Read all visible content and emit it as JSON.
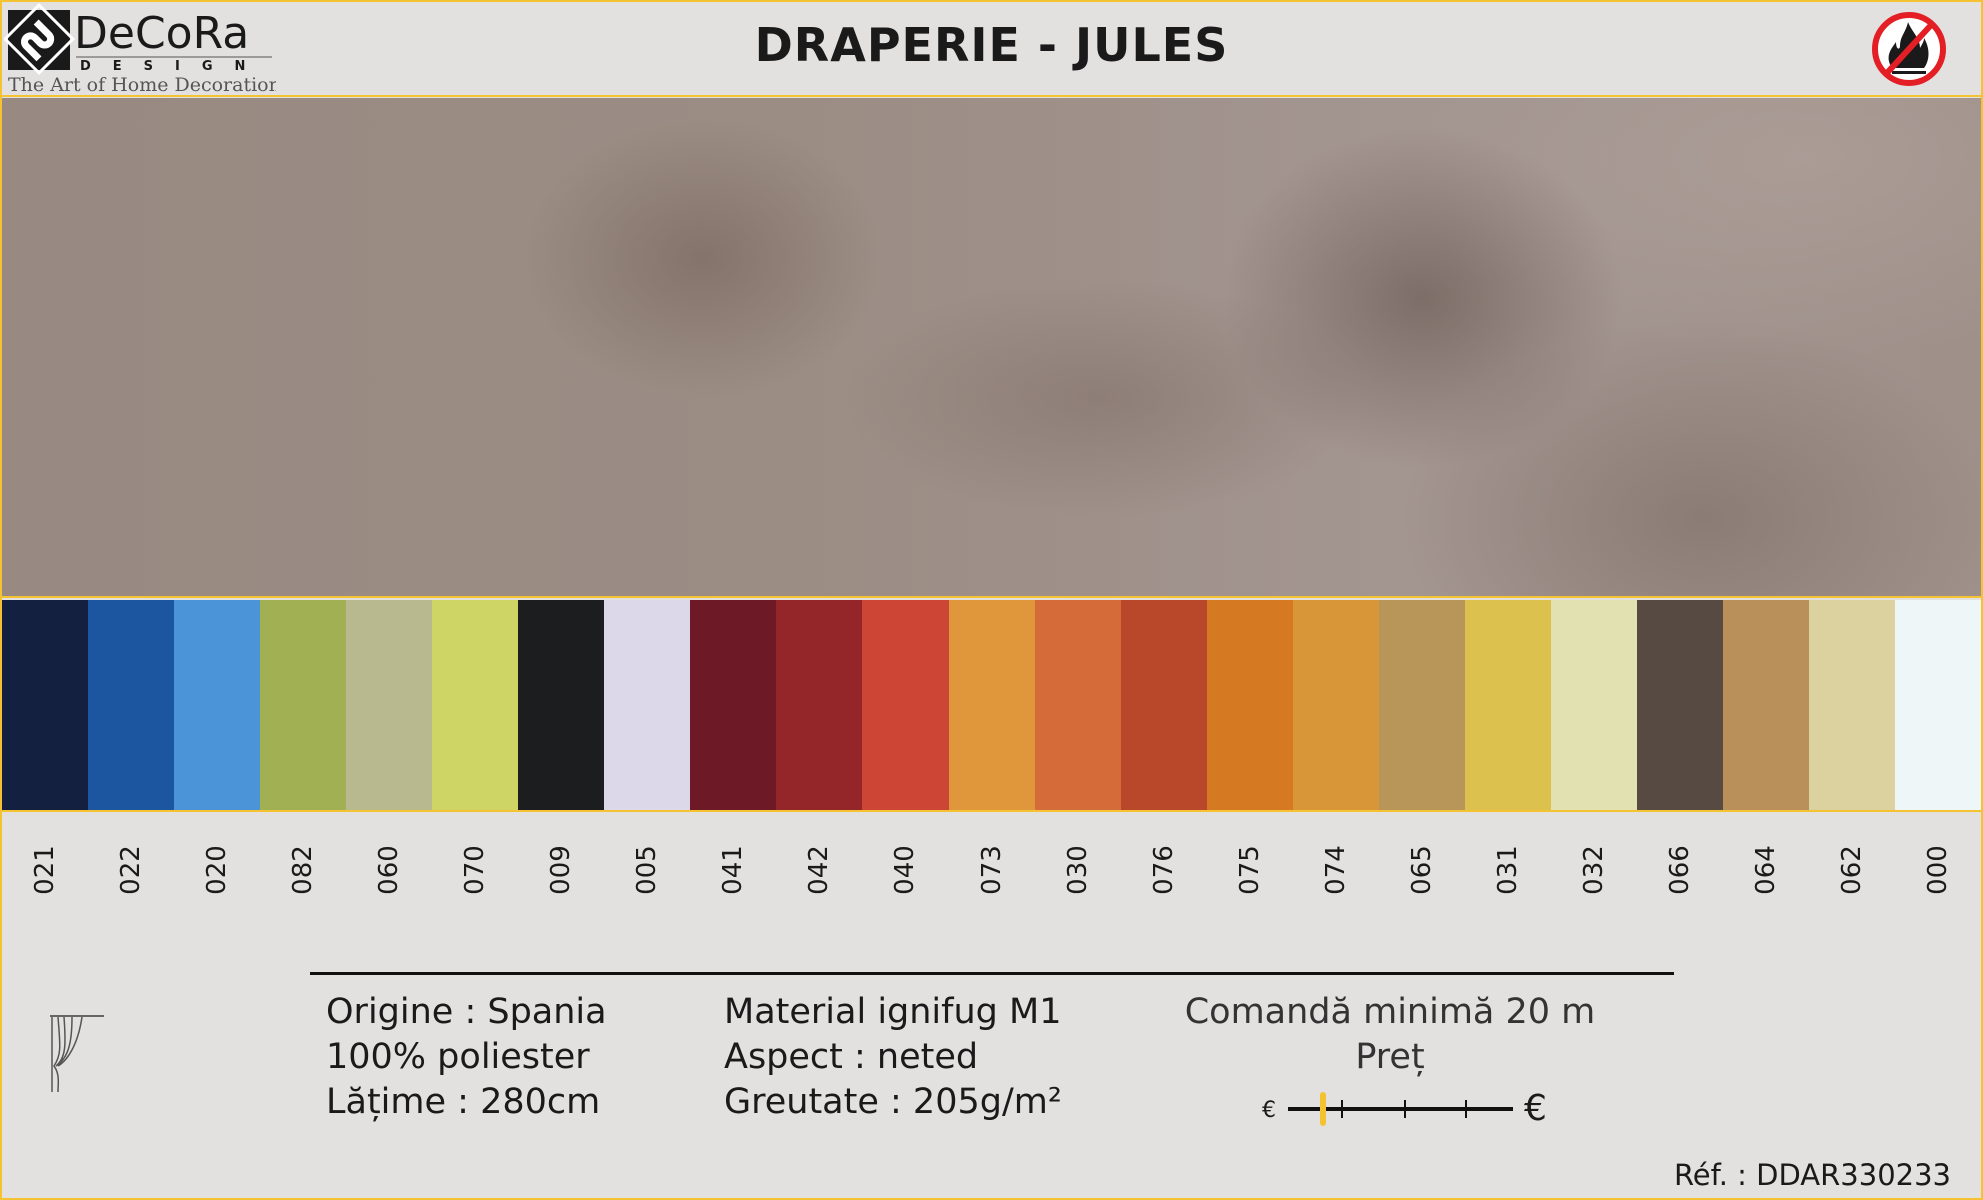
{
  "header": {
    "brand": "DeCoRa",
    "brand_sub": "DESIGN",
    "tagline": "The Art of Home Decoration",
    "title": "DRAPERIE - JULES",
    "fire_icon": "no-fire-icon"
  },
  "swatches": [
    {
      "code": "021",
      "color": "#14203f"
    },
    {
      "code": "022",
      "color": "#1d56a0"
    },
    {
      "code": "020",
      "color": "#4b94d8"
    },
    {
      "code": "082",
      "color": "#a1b052"
    },
    {
      "code": "060",
      "color": "#b8b98e"
    },
    {
      "code": "070",
      "color": "#cfd564"
    },
    {
      "code": "009",
      "color": "#1b1d1e"
    },
    {
      "code": "005",
      "color": "#dcd8ea"
    },
    {
      "code": "041",
      "color": "#6e1a26"
    },
    {
      "code": "042",
      "color": "#94262a"
    },
    {
      "code": "040",
      "color": "#cc4535"
    },
    {
      "code": "073",
      "color": "#e0963a"
    },
    {
      "code": "030",
      "color": "#d46b38"
    },
    {
      "code": "076",
      "color": "#b9482a"
    },
    {
      "code": "075",
      "color": "#d57a23"
    },
    {
      "code": "074",
      "color": "#d99638"
    },
    {
      "code": "065",
      "color": "#b8965a"
    },
    {
      "code": "031",
      "color": "#dcc14f"
    },
    {
      "code": "032",
      "color": "#e2e1b2"
    },
    {
      "code": "066",
      "color": "#574a42"
    },
    {
      "code": "064",
      "color": "#b99059"
    },
    {
      "code": "062",
      "color": "#dbd2a0"
    },
    {
      "code": "000",
      "color": "#eef6f8"
    }
  ],
  "info": {
    "col1": [
      "Origine : Spania",
      "100% poliester",
      "Lățime : 280cm"
    ],
    "col2": [
      "Material ignifug M1",
      "Aspect : neted",
      "Greutate : 205g/m²"
    ],
    "min_order": "Comandă minimă 20 m",
    "price_label": "Preț",
    "price_low": "€",
    "price_high": "€",
    "price_level": "1 of 5",
    "ref": "Réf. : DDAR330233"
  },
  "colors": {
    "border": "#f5c331",
    "price_marker": "#f5c331"
  }
}
